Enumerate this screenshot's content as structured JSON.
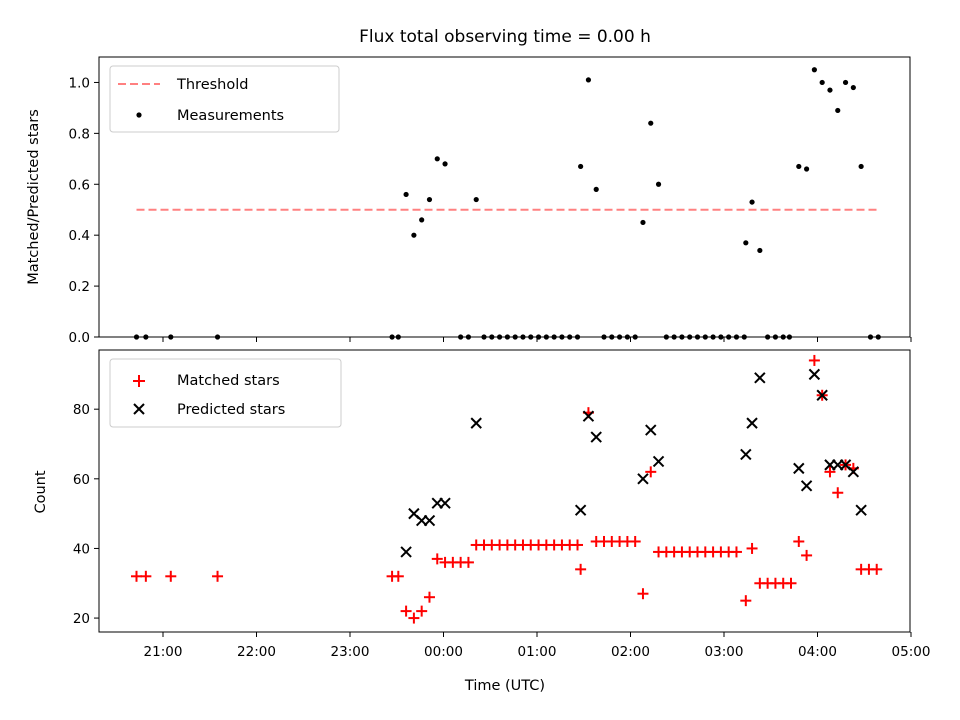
{
  "chart_data": [
    {
      "type": "scatter",
      "title": "Flux total observing time = 0.00 h",
      "xlabel": "",
      "ylabel": "Matched/Predicted stars",
      "ylim": [
        0,
        1.1
      ],
      "yticks": [
        "0.0",
        "0.2",
        "0.4",
        "0.6",
        "0.8",
        "1.0"
      ],
      "grid": false,
      "legend_position": "top-left",
      "threshold": {
        "name": "Threshold",
        "value": 0.5,
        "x_range": [
          "20:43",
          "04:40"
        ],
        "color": "#ff8080"
      },
      "series": [
        {
          "name": "Measurements",
          "color": "#000000",
          "points": [
            [
              "20:43",
              0
            ],
            [
              "20:49",
              0
            ],
            [
              "21:05",
              0
            ],
            [
              "21:35",
              0
            ],
            [
              "23:27",
              0
            ],
            [
              "23:31",
              0
            ],
            [
              "23:36",
              0.56
            ],
            [
              "23:41",
              0.4
            ],
            [
              "23:46",
              0.46
            ],
            [
              "23:51",
              0.54
            ],
            [
              "23:56",
              0.7
            ],
            [
              "00:01",
              0.68
            ],
            [
              "00:11",
              0
            ],
            [
              "00:16",
              0
            ],
            [
              "00:21",
              0.54
            ],
            [
              "00:26",
              0
            ],
            [
              "00:31",
              0
            ],
            [
              "00:36",
              0
            ],
            [
              "00:41",
              0
            ],
            [
              "00:46",
              0
            ],
            [
              "00:51",
              0
            ],
            [
              "00:56",
              0
            ],
            [
              "01:01",
              0
            ],
            [
              "01:06",
              0
            ],
            [
              "01:11",
              0
            ],
            [
              "01:16",
              0
            ],
            [
              "01:21",
              0
            ],
            [
              "01:26",
              0
            ],
            [
              "01:28",
              0.67
            ],
            [
              "01:33",
              1.01
            ],
            [
              "01:38",
              0.58
            ],
            [
              "01:43",
              0
            ],
            [
              "01:48",
              0
            ],
            [
              "01:53",
              0
            ],
            [
              "01:58",
              0
            ],
            [
              "02:03",
              0
            ],
            [
              "02:08",
              0.45
            ],
            [
              "02:13",
              0.84
            ],
            [
              "02:18",
              0.6
            ],
            [
              "02:23",
              0
            ],
            [
              "02:28",
              0
            ],
            [
              "02:33",
              0
            ],
            [
              "02:38",
              0
            ],
            [
              "02:43",
              0
            ],
            [
              "02:48",
              0
            ],
            [
              "02:53",
              0
            ],
            [
              "02:58",
              0
            ],
            [
              "03:03",
              0
            ],
            [
              "03:08",
              0
            ],
            [
              "03:13",
              0
            ],
            [
              "03:14",
              0.37
            ],
            [
              "03:18",
              0.53
            ],
            [
              "03:23",
              0.34
            ],
            [
              "03:28",
              0
            ],
            [
              "03:33",
              0
            ],
            [
              "03:38",
              0
            ],
            [
              "03:42",
              0
            ],
            [
              "03:48",
              0.67
            ],
            [
              "03:53",
              0.66
            ],
            [
              "03:58",
              1.05
            ],
            [
              "04:03",
              1.0
            ],
            [
              "04:08",
              0.97
            ],
            [
              "04:13",
              0.89
            ],
            [
              "04:18",
              1.0
            ],
            [
              "04:23",
              0.98
            ],
            [
              "04:28",
              0.67
            ],
            [
              "04:34",
              0
            ],
            [
              "04:39",
              0
            ]
          ]
        }
      ]
    },
    {
      "type": "scatter",
      "title": "",
      "xlabel": "Time (UTC)",
      "ylabel": "Count",
      "ylim": [
        16,
        97
      ],
      "yticks": [
        "20",
        "40",
        "60",
        "80"
      ],
      "xticks": [
        "21:00",
        "22:00",
        "23:00",
        "00:00",
        "01:00",
        "02:00",
        "03:00",
        "04:00",
        "05:00"
      ],
      "grid": false,
      "legend_position": "top-left",
      "series": [
        {
          "name": "Matched stars",
          "marker": "plus",
          "color": "#ff0000",
          "points": [
            [
              "20:43",
              32
            ],
            [
              "20:49",
              32
            ],
            [
              "21:05",
              32
            ],
            [
              "21:35",
              32
            ],
            [
              "23:27",
              32
            ],
            [
              "23:31",
              32
            ],
            [
              "23:36",
              22
            ],
            [
              "23:41",
              20
            ],
            [
              "23:46",
              22
            ],
            [
              "23:51",
              26
            ],
            [
              "23:56",
              37
            ],
            [
              "00:01",
              36
            ],
            [
              "00:06",
              36
            ],
            [
              "00:11",
              36
            ],
            [
              "00:16",
              36
            ],
            [
              "00:21",
              41
            ],
            [
              "00:26",
              41
            ],
            [
              "00:31",
              41
            ],
            [
              "00:36",
              41
            ],
            [
              "00:41",
              41
            ],
            [
              "00:46",
              41
            ],
            [
              "00:51",
              41
            ],
            [
              "00:56",
              41
            ],
            [
              "01:01",
              41
            ],
            [
              "01:06",
              41
            ],
            [
              "01:11",
              41
            ],
            [
              "01:16",
              41
            ],
            [
              "01:21",
              41
            ],
            [
              "01:26",
              41
            ],
            [
              "01:28",
              34
            ],
            [
              "01:33",
              79
            ],
            [
              "01:38",
              42
            ],
            [
              "01:43",
              42
            ],
            [
              "01:48",
              42
            ],
            [
              "01:53",
              42
            ],
            [
              "01:58",
              42
            ],
            [
              "02:03",
              42
            ],
            [
              "02:08",
              27
            ],
            [
              "02:13",
              62
            ],
            [
              "02:18",
              39
            ],
            [
              "02:23",
              39
            ],
            [
              "02:28",
              39
            ],
            [
              "02:33",
              39
            ],
            [
              "02:38",
              39
            ],
            [
              "02:43",
              39
            ],
            [
              "02:48",
              39
            ],
            [
              "02:53",
              39
            ],
            [
              "02:58",
              39
            ],
            [
              "03:03",
              39
            ],
            [
              "03:08",
              39
            ],
            [
              "03:14",
              25
            ],
            [
              "03:18",
              40
            ],
            [
              "03:23",
              30
            ],
            [
              "03:28",
              30
            ],
            [
              "03:33",
              30
            ],
            [
              "03:38",
              30
            ],
            [
              "03:43",
              30
            ],
            [
              "03:48",
              42
            ],
            [
              "03:53",
              38
            ],
            [
              "03:58",
              94
            ],
            [
              "04:03",
              84
            ],
            [
              "04:08",
              62
            ],
            [
              "04:13",
              56
            ],
            [
              "04:18",
              64
            ],
            [
              "04:23",
              63
            ],
            [
              "04:28",
              34
            ],
            [
              "04:33",
              34
            ],
            [
              "04:38",
              34
            ]
          ]
        },
        {
          "name": "Predicted stars",
          "marker": "x",
          "color": "#000000",
          "points": [
            [
              "23:36",
              39
            ],
            [
              "23:41",
              50
            ],
            [
              "23:46",
              48
            ],
            [
              "23:51",
              48
            ],
            [
              "23:56",
              53
            ],
            [
              "00:01",
              53
            ],
            [
              "00:21",
              76
            ],
            [
              "01:28",
              51
            ],
            [
              "01:33",
              78
            ],
            [
              "01:38",
              72
            ],
            [
              "02:08",
              60
            ],
            [
              "02:13",
              74
            ],
            [
              "02:18",
              65
            ],
            [
              "03:14",
              67
            ],
            [
              "03:18",
              76
            ],
            [
              "03:23",
              89
            ],
            [
              "03:48",
              63
            ],
            [
              "03:53",
              58
            ],
            [
              "03:58",
              90
            ],
            [
              "04:03",
              84
            ],
            [
              "04:08",
              64
            ],
            [
              "04:13",
              64
            ],
            [
              "04:18",
              64
            ],
            [
              "04:23",
              62
            ],
            [
              "04:28",
              51
            ]
          ]
        }
      ]
    }
  ]
}
